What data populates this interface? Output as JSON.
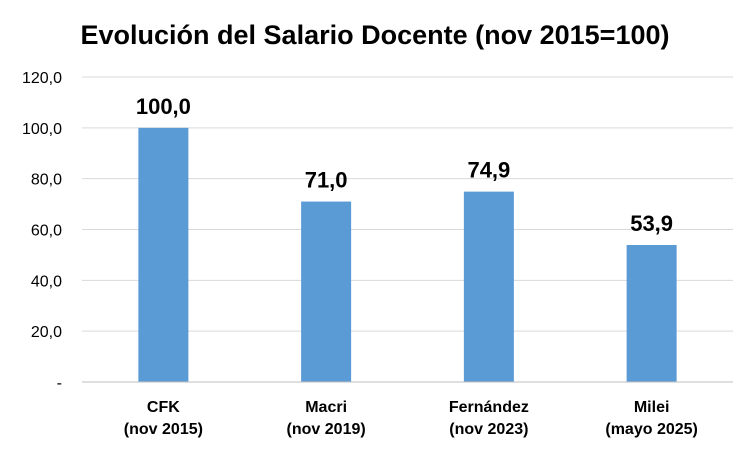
{
  "chart_data": {
    "type": "bar",
    "title": "Evolución del Salario Docente (nov 2015=100)",
    "categories": [
      [
        "CFK",
        "(nov 2015)"
      ],
      [
        "Macri",
        "(nov 2019)"
      ],
      [
        "Fernández",
        "(nov 2023)"
      ],
      [
        "Milei",
        "(mayo 2025)"
      ]
    ],
    "values": [
      100.0,
      71.0,
      74.9,
      53.9
    ],
    "data_labels": [
      "100,0",
      "71,0",
      "74,9",
      "53,9"
    ],
    "ylim": [
      0,
      120
    ],
    "yticks": [
      0,
      20,
      40,
      60,
      80,
      100,
      120
    ],
    "ytick_labels": [
      "-",
      "20,0",
      "40,0",
      "60,0",
      "80,0",
      "100,0",
      "120,0"
    ],
    "bar_color": "#5b9bd5",
    "grid": true,
    "legend": false
  }
}
